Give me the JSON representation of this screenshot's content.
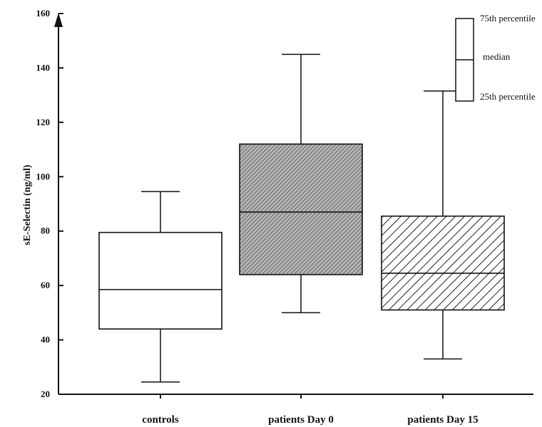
{
  "chart_data": {
    "type": "box",
    "ylabel": "sE-Selectin  (ng/ml)",
    "ylim": [
      20,
      160
    ],
    "yticks": [
      20,
      40,
      60,
      80,
      100,
      120,
      140,
      160
    ],
    "ytick_labels": [
      "20",
      "40",
      "60",
      "80",
      "100",
      "120",
      "140",
      "160"
    ],
    "grid": false,
    "categories": [
      "controls",
      "patients Day 0",
      "patients Day 15"
    ],
    "boxes": [
      {
        "category": "controls",
        "whisker_low": 24.5,
        "q1": 44,
        "median": 58.5,
        "q3": 79.5,
        "whisker_high": 94.5,
        "fill": "white"
      },
      {
        "category": "patients Day 0",
        "whisker_low": 50,
        "q1": 64,
        "median": 87,
        "q3": 112,
        "whisker_high": 145,
        "fill": "dense-hatch"
      },
      {
        "category": "patients Day 15",
        "whisker_low": 33,
        "q1": 51,
        "median": 64.5,
        "q3": 85.5,
        "whisker_high": 131.5,
        "fill": "diagonal-hatch"
      }
    ],
    "legend": {
      "placement": "top-right",
      "labels": [
        "75th percentile",
        "median",
        "25th percentile"
      ]
    }
  }
}
